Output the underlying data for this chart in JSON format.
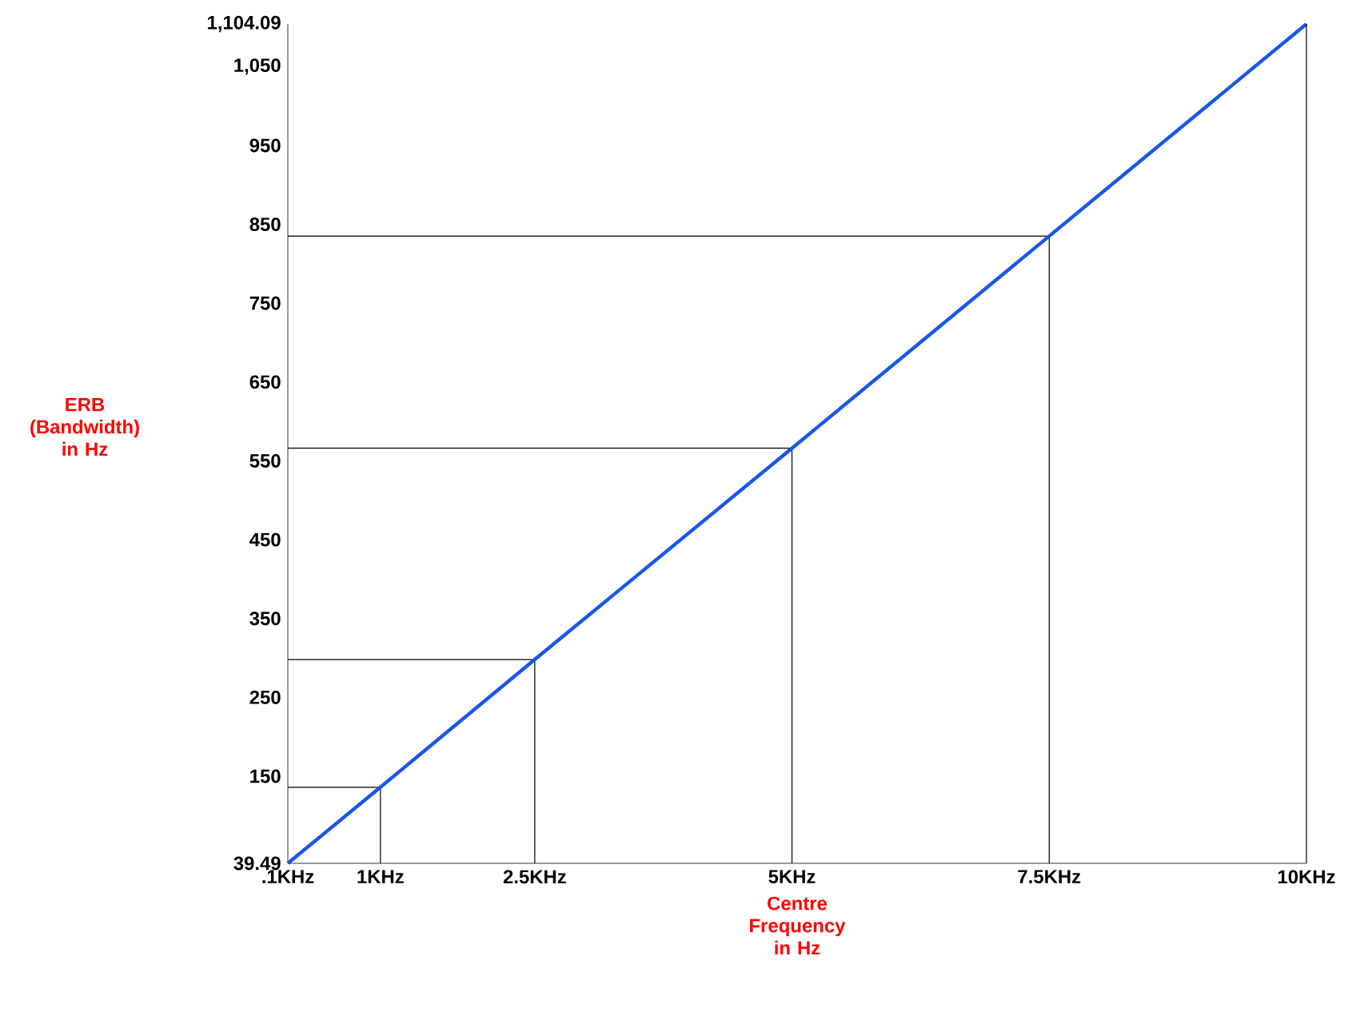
{
  "chart_data": {
    "type": "line",
    "xlabel": "Centre Frequency in Hz",
    "ylabel": "ERB (Bandwidth) in Hz",
    "x": [
      0.1,
      1,
      2.5,
      5,
      7.5,
      10
    ],
    "series": [
      {
        "type": "line",
        "color": "#000000",
        "x": [
          0.1,
          1,
          1
        ],
        "values": [
          136,
          136,
          39.49
        ]
      },
      {
        "type": "line",
        "color": "#000000",
        "x": [
          0.1,
          2.5,
          2.5
        ],
        "values": [
          298,
          298,
          39.49
        ]
      },
      {
        "type": "line",
        "color": "#000000",
        "x": [
          0.1,
          5,
          5
        ],
        "values": [
          566,
          566,
          39.49
        ]
      },
      {
        "type": "line",
        "color": "#000000",
        "x": [
          0.1,
          7.5,
          7.5
        ],
        "values": [
          835,
          835,
          39.49
        ]
      },
      {
        "color": "#1a56e8",
        "values": [
          39.49,
          136,
          298,
          566,
          835,
          1104.09
        ]
      }
    ],
    "xlim": [
      0.1,
      10
    ],
    "ylim": [
      39.49,
      1104.09
    ],
    "xticks": [
      {
        "value": 0.1,
        "label": ".1KHz"
      },
      {
        "value": 1,
        "label": "1KHz"
      },
      {
        "value": 2.5,
        "label": "2.5KHz"
      },
      {
        "value": 5,
        "label": "5KHz"
      },
      {
        "value": 7.5,
        "label": "7.5KHz"
      },
      {
        "value": 10,
        "label": "10KHz"
      }
    ],
    "yticks": [
      39.49,
      150,
      250,
      350,
      450,
      550,
      650,
      750,
      850,
      950,
      {
        "value": 1050,
        "label": "1,050"
      },
      {
        "value": 1104.09,
        "label": "1,104.09"
      }
    ],
    "ref_lines": [
      {
        "axis": "x",
        "value": 10,
        "color": "#000000",
        "line_style": "solid"
      }
    ],
    "grid": false,
    "legend": false,
    "marker": "none",
    "line_style": "solid"
  }
}
